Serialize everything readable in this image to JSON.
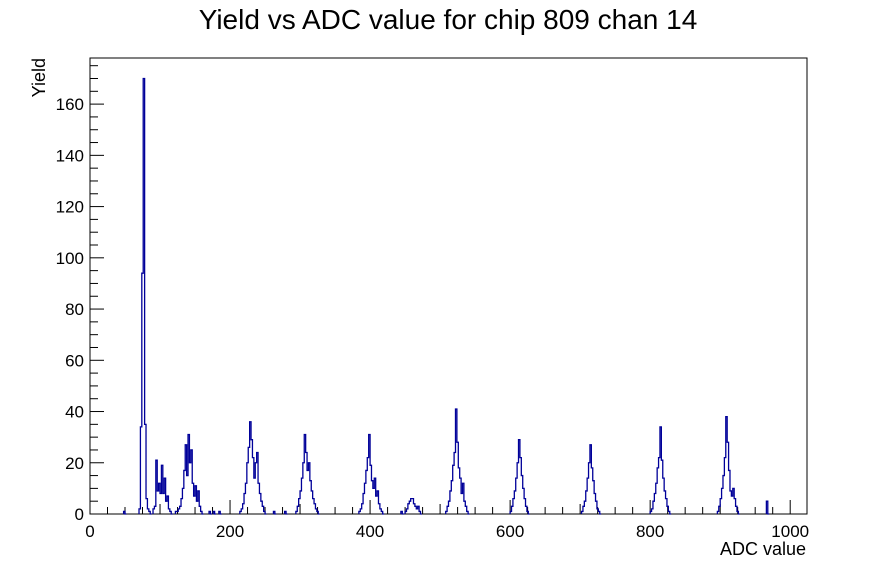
{
  "chart_data": {
    "type": "histogram",
    "title": "Yield vs ADC value for chip 809 chan 14",
    "xlabel": "ADC value",
    "ylabel": "Yield",
    "xlim": [
      0,
      1024
    ],
    "ylim": [
      0,
      178
    ],
    "x_ticks": [
      0,
      200,
      400,
      600,
      800,
      1000
    ],
    "y_ticks": [
      0,
      20,
      40,
      60,
      80,
      100,
      120,
      140,
      160
    ],
    "grid": false,
    "line_color": "#000099",
    "bin_width": 2,
    "bins": [
      [
        48,
        1
      ],
      [
        50,
        0
      ],
      [
        70,
        2
      ],
      [
        72,
        34
      ],
      [
        74,
        94
      ],
      [
        76,
        170
      ],
      [
        78,
        35
      ],
      [
        80,
        6
      ],
      [
        82,
        2
      ],
      [
        84,
        1
      ],
      [
        86,
        0
      ],
      [
        90,
        2
      ],
      [
        92,
        3
      ],
      [
        94,
        21
      ],
      [
        96,
        9
      ],
      [
        98,
        12
      ],
      [
        100,
        8
      ],
      [
        102,
        19
      ],
      [
        104,
        8
      ],
      [
        106,
        14
      ],
      [
        108,
        5
      ],
      [
        110,
        7
      ],
      [
        112,
        2
      ],
      [
        114,
        1
      ],
      [
        116,
        0
      ],
      [
        122,
        1
      ],
      [
        124,
        1
      ],
      [
        126,
        2
      ],
      [
        128,
        3
      ],
      [
        130,
        6
      ],
      [
        132,
        10
      ],
      [
        134,
        17
      ],
      [
        136,
        27
      ],
      [
        138,
        15
      ],
      [
        140,
        31
      ],
      [
        142,
        20
      ],
      [
        144,
        25
      ],
      [
        146,
        12
      ],
      [
        148,
        7
      ],
      [
        150,
        11
      ],
      [
        152,
        5
      ],
      [
        154,
        9
      ],
      [
        156,
        3
      ],
      [
        158,
        1
      ],
      [
        160,
        0
      ],
      [
        170,
        1
      ],
      [
        172,
        0
      ],
      [
        176,
        1
      ],
      [
        178,
        0
      ],
      [
        184,
        1
      ],
      [
        186,
        0
      ],
      [
        214,
        1
      ],
      [
        216,
        2
      ],
      [
        218,
        4
      ],
      [
        220,
        8
      ],
      [
        222,
        12
      ],
      [
        224,
        20
      ],
      [
        226,
        26
      ],
      [
        228,
        36
      ],
      [
        230,
        29
      ],
      [
        232,
        22
      ],
      [
        234,
        14
      ],
      [
        236,
        20
      ],
      [
        238,
        24
      ],
      [
        240,
        12
      ],
      [
        242,
        8
      ],
      [
        244,
        5
      ],
      [
        246,
        3
      ],
      [
        248,
        1
      ],
      [
        250,
        0
      ],
      [
        262,
        1
      ],
      [
        264,
        0
      ],
      [
        278,
        1
      ],
      [
        280,
        0
      ],
      [
        294,
        1
      ],
      [
        296,
        3
      ],
      [
        298,
        6
      ],
      [
        300,
        9
      ],
      [
        302,
        14
      ],
      [
        304,
        20
      ],
      [
        306,
        31
      ],
      [
        308,
        24
      ],
      [
        310,
        17
      ],
      [
        312,
        20
      ],
      [
        314,
        13
      ],
      [
        316,
        9
      ],
      [
        318,
        6
      ],
      [
        320,
        4
      ],
      [
        322,
        2
      ],
      [
        324,
        1
      ],
      [
        326,
        0
      ],
      [
        384,
        1
      ],
      [
        386,
        2
      ],
      [
        388,
        4
      ],
      [
        390,
        8
      ],
      [
        392,
        12
      ],
      [
        394,
        17
      ],
      [
        396,
        22
      ],
      [
        398,
        31
      ],
      [
        400,
        19
      ],
      [
        402,
        13
      ],
      [
        404,
        10
      ],
      [
        406,
        14
      ],
      [
        408,
        7
      ],
      [
        410,
        9
      ],
      [
        412,
        4
      ],
      [
        414,
        2
      ],
      [
        416,
        1
      ],
      [
        418,
        0
      ],
      [
        444,
        1
      ],
      [
        446,
        0
      ],
      [
        450,
        1
      ],
      [
        452,
        2
      ],
      [
        454,
        4
      ],
      [
        456,
        5
      ],
      [
        458,
        6
      ],
      [
        460,
        6
      ],
      [
        462,
        4
      ],
      [
        464,
        3
      ],
      [
        466,
        2
      ],
      [
        468,
        3
      ],
      [
        470,
        1
      ],
      [
        472,
        0
      ],
      [
        508,
        1
      ],
      [
        510,
        3
      ],
      [
        512,
        5
      ],
      [
        514,
        9
      ],
      [
        516,
        13
      ],
      [
        518,
        19
      ],
      [
        520,
        24
      ],
      [
        522,
        41
      ],
      [
        524,
        28
      ],
      [
        526,
        18
      ],
      [
        528,
        14
      ],
      [
        530,
        8
      ],
      [
        532,
        12
      ],
      [
        534,
        5
      ],
      [
        536,
        3
      ],
      [
        538,
        1
      ],
      [
        540,
        0
      ],
      [
        600,
        1
      ],
      [
        602,
        3
      ],
      [
        604,
        6
      ],
      [
        606,
        9
      ],
      [
        608,
        14
      ],
      [
        610,
        20
      ],
      [
        612,
        29
      ],
      [
        614,
        22
      ],
      [
        616,
        15
      ],
      [
        618,
        10
      ],
      [
        620,
        6
      ],
      [
        622,
        3
      ],
      [
        624,
        1
      ],
      [
        626,
        0
      ],
      [
        702,
        1
      ],
      [
        704,
        3
      ],
      [
        706,
        5
      ],
      [
        708,
        9
      ],
      [
        710,
        14
      ],
      [
        712,
        20
      ],
      [
        714,
        27
      ],
      [
        716,
        18
      ],
      [
        718,
        13
      ],
      [
        720,
        8
      ],
      [
        722,
        5
      ],
      [
        724,
        2
      ],
      [
        726,
        1
      ],
      [
        728,
        0
      ],
      [
        800,
        1
      ],
      [
        802,
        2
      ],
      [
        804,
        5
      ],
      [
        806,
        8
      ],
      [
        808,
        12
      ],
      [
        810,
        18
      ],
      [
        812,
        22
      ],
      [
        814,
        34
      ],
      [
        816,
        21
      ],
      [
        818,
        14
      ],
      [
        820,
        9
      ],
      [
        822,
        6
      ],
      [
        824,
        3
      ],
      [
        826,
        1
      ],
      [
        828,
        0
      ],
      [
        896,
        1
      ],
      [
        898,
        3
      ],
      [
        900,
        6
      ],
      [
        902,
        10
      ],
      [
        904,
        15
      ],
      [
        906,
        22
      ],
      [
        908,
        38
      ],
      [
        910,
        28
      ],
      [
        912,
        17
      ],
      [
        914,
        9
      ],
      [
        916,
        7
      ],
      [
        918,
        10
      ],
      [
        920,
        6
      ],
      [
        922,
        3
      ],
      [
        924,
        1
      ],
      [
        926,
        0
      ],
      [
        966,
        5
      ],
      [
        968,
        0
      ]
    ]
  }
}
